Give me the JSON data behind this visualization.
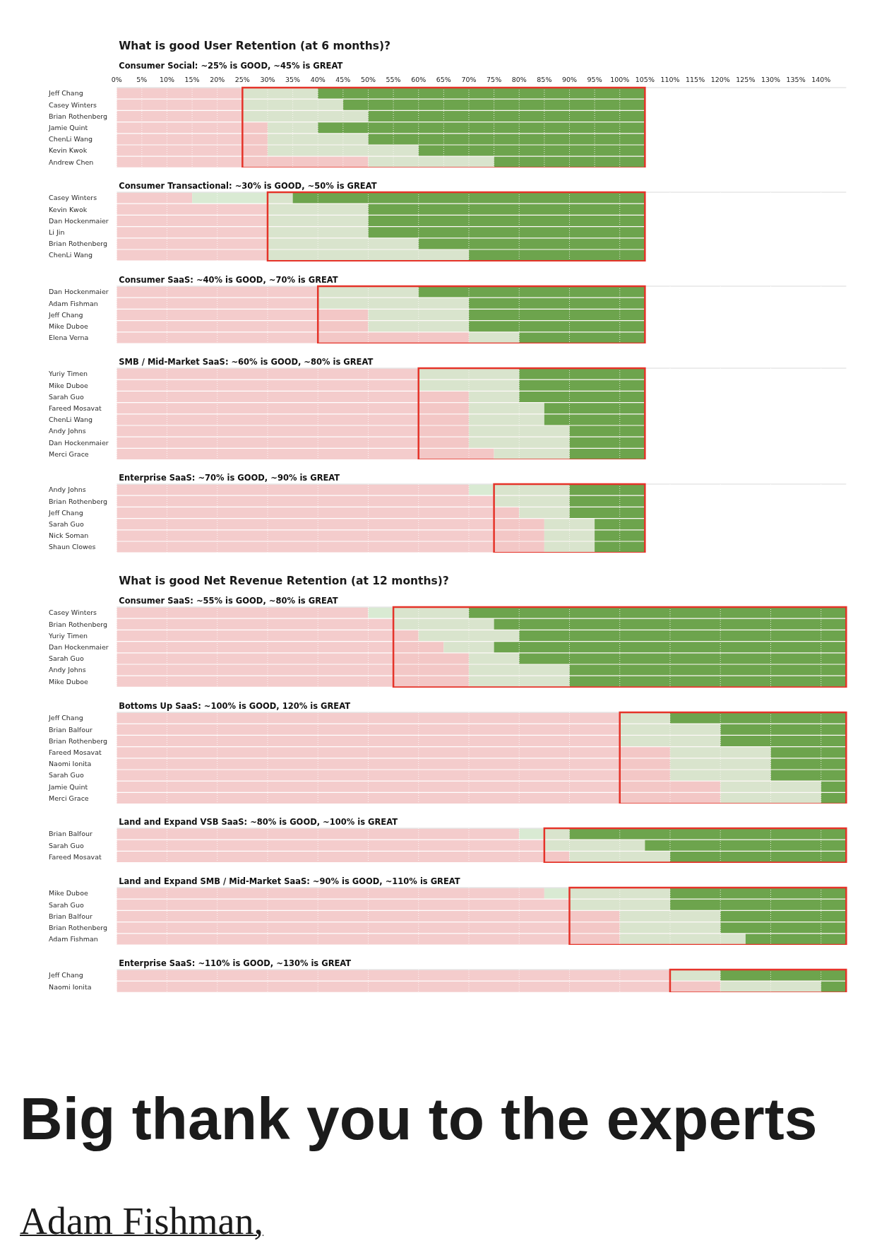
{
  "chart_data": [
    {
      "type": "bar",
      "title": "What is good User Retention (at 6 months)?",
      "subtitle": "Consumer Social: ~25% is GOOD, ~45% is GREAT",
      "orientation": "horizontal",
      "stacked": true,
      "categories": [
        "Jeff Chang",
        "Casey Winters",
        "Brian Rothenberg",
        "Jamie Quint",
        "ChenLi Wang",
        "Kevin Kwok",
        "Andrew Chen"
      ],
      "series": [
        {
          "color": "#f4cccc",
          "values": [
            25,
            25,
            25,
            30,
            30,
            30,
            50
          ]
        },
        {
          "color": "#d9ead3",
          "values": [
            15,
            20,
            25,
            10,
            20,
            30,
            25
          ]
        },
        {
          "color": "#6aa84f",
          "values": [
            65,
            60,
            55,
            65,
            55,
            45,
            30
          ]
        }
      ],
      "xlim": [
        0,
        145
      ],
      "xticks": [
        {
          "value": 0,
          "label": "0%"
        },
        {
          "value": 5,
          "label": "5%"
        },
        {
          "value": 10,
          "label": "10%"
        },
        {
          "value": 15,
          "label": "15%"
        },
        {
          "value": 20,
          "label": "20%"
        },
        {
          "value": 25,
          "label": "25%"
        },
        {
          "value": 30,
          "label": "30%"
        },
        {
          "value": 35,
          "label": "35%"
        },
        {
          "value": 40,
          "label": "40%"
        },
        {
          "value": 45,
          "label": "45%"
        },
        {
          "value": 50,
          "label": "50%"
        },
        {
          "value": 55,
          "label": "55%"
        },
        {
          "value": 60,
          "label": "60%"
        },
        {
          "value": 65,
          "label": "65%"
        },
        {
          "value": 70,
          "label": "70%"
        },
        {
          "value": 75,
          "label": "75%"
        },
        {
          "value": 80,
          "label": "80%"
        },
        {
          "value": 85,
          "label": "85%"
        },
        {
          "value": 90,
          "label": "90%"
        },
        {
          "value": 95,
          "label": "95%"
        },
        {
          "value": 100,
          "label": "100%"
        },
        {
          "value": 105,
          "label": "105%"
        },
        {
          "value": 110,
          "label": "110%"
        },
        {
          "value": 115,
          "label": "115%"
        },
        {
          "value": 120,
          "label": "120%"
        },
        {
          "value": 125,
          "label": "125%"
        },
        {
          "value": 130,
          "label": "130%"
        },
        {
          "value": 135,
          "label": "135%"
        },
        {
          "value": 140,
          "label": "140%"
        }
      ],
      "grid": "x",
      "bands": [
        {
          "axis": "x",
          "from": 25,
          "to": 105,
          "color": "#e53329"
        }
      ]
    },
    {
      "type": "bar",
      "subtitle": "Consumer Transactional: ~30% is GOOD, ~50% is GREAT",
      "orientation": "horizontal",
      "stacked": true,
      "categories": [
        "Casey Winters",
        "Kevin Kwok",
        "Dan Hockenmaier",
        "Li Jin",
        "Brian Rothenberg",
        "ChenLi Wang"
      ],
      "series": [
        {
          "color": "#f4cccc",
          "values": [
            15,
            30,
            30,
            30,
            30,
            30
          ]
        },
        {
          "color": "#d9ead3",
          "values": [
            20,
            20,
            20,
            20,
            30,
            40
          ]
        },
        {
          "color": "#6aa84f",
          "values": [
            70,
            55,
            55,
            55,
            45,
            35
          ]
        }
      ],
      "xlim": [
        0,
        145
      ],
      "xticks": [
        0,
        10,
        20,
        30,
        40,
        50,
        60,
        70,
        80,
        90,
        100,
        110,
        120,
        130,
        140
      ],
      "tick_labels": "y",
      "grid": "x",
      "bands": [
        {
          "axis": "x",
          "from": 30,
          "to": 105,
          "color": "#e53329"
        }
      ]
    },
    {
      "type": "bar",
      "subtitle": "Consumer SaaS: ~40% is GOOD, ~70% is GREAT",
      "orientation": "horizontal",
      "stacked": true,
      "categories": [
        "Dan Hockenmaier",
        "Adam Fishman",
        "Jeff Chang",
        "Mike Duboe",
        "Elena Verna"
      ],
      "series": [
        {
          "color": "#f4cccc",
          "values": [
            40,
            40,
            50,
            50,
            70
          ]
        },
        {
          "color": "#d9ead3",
          "values": [
            20,
            30,
            20,
            20,
            10
          ]
        },
        {
          "color": "#6aa84f",
          "values": [
            45,
            35,
            35,
            35,
            25
          ]
        }
      ],
      "xlim": [
        0,
        145
      ],
      "xticks": [
        0,
        10,
        20,
        30,
        40,
        50,
        60,
        70,
        80,
        90,
        100,
        110,
        120,
        130,
        140
      ],
      "tick_labels": "y",
      "grid": "x",
      "bands": [
        {
          "axis": "x",
          "from": 40,
          "to": 105,
          "color": "#e53329"
        }
      ]
    },
    {
      "type": "bar",
      "subtitle": "SMB / Mid-Market SaaS: ~60% is GOOD, ~80% is GREAT",
      "orientation": "horizontal",
      "stacked": true,
      "categories": [
        "Yuriy Timen",
        "Mike Duboe",
        "Sarah Guo",
        "Fareed Mosavat",
        "ChenLi Wang",
        "Andy Johns",
        "Dan Hockenmaier",
        "Merci Grace"
      ],
      "series": [
        {
          "color": "#f4cccc",
          "values": [
            60,
            60,
            70,
            70,
            70,
            70,
            70,
            75
          ]
        },
        {
          "color": "#d9ead3",
          "values": [
            20,
            20,
            10,
            15,
            15,
            20,
            20,
            15
          ]
        },
        {
          "color": "#6aa84f",
          "values": [
            25,
            25,
            25,
            20,
            20,
            15,
            15,
            15
          ]
        }
      ],
      "xlim": [
        0,
        145
      ],
      "xticks": [
        0,
        10,
        20,
        30,
        40,
        50,
        60,
        70,
        80,
        90,
        100,
        110,
        120,
        130,
        140
      ],
      "tick_labels": "y",
      "grid": "x",
      "bands": [
        {
          "axis": "x",
          "from": 60,
          "to": 105,
          "color": "#e53329"
        }
      ]
    },
    {
      "type": "bar",
      "subtitle": "Enterprise SaaS: ~70% is GOOD, ~90% is GREAT",
      "orientation": "horizontal",
      "stacked": true,
      "categories": [
        "Andy Johns",
        "Brian Rothenberg",
        "Jeff Chang",
        "Sarah Guo",
        "Nick Soman",
        "Shaun Clowes"
      ],
      "series": [
        {
          "color": "#f4cccc",
          "values": [
            70,
            75,
            80,
            85,
            85,
            85
          ]
        },
        {
          "color": "#d9ead3",
          "values": [
            20,
            15,
            10,
            10,
            10,
            10
          ]
        },
        {
          "color": "#6aa84f",
          "values": [
            15,
            15,
            15,
            10,
            10,
            10
          ]
        }
      ],
      "xlim": [
        0,
        145
      ],
      "xticks": [
        0,
        10,
        20,
        30,
        40,
        50,
        60,
        70,
        80,
        90,
        100,
        110,
        120,
        130,
        140
      ],
      "tick_labels": "y",
      "grid": "x",
      "bands": [
        {
          "axis": "x",
          "from": 75,
          "to": 105,
          "color": "#e53329"
        }
      ]
    },
    {
      "type": "bar",
      "title": "What is good Net Revenue Retention (at 12 months)?",
      "subtitle": "Consumer SaaS: ~55% is GOOD, ~80% is GREAT",
      "orientation": "horizontal",
      "stacked": true,
      "categories": [
        "Casey Winters",
        "Brian Rothenberg",
        "Yuriy Timen",
        "Dan Hockenmaier",
        "Sarah Guo",
        "Andy Johns",
        "Mike Duboe"
      ],
      "series": [
        {
          "color": "#f4cccc",
          "values": [
            50,
            55,
            60,
            65,
            70,
            70,
            70
          ]
        },
        {
          "color": "#d9ead3",
          "values": [
            20,
            20,
            20,
            10,
            10,
            20,
            20
          ]
        },
        {
          "color": "#6aa84f",
          "values": [
            75,
            70,
            65,
            70,
            65,
            55,
            55
          ]
        }
      ],
      "xlim": [
        0,
        145
      ],
      "xticks": [
        0,
        10,
        20,
        30,
        40,
        50,
        60,
        70,
        80,
        90,
        100,
        110,
        120,
        130,
        140
      ],
      "tick_labels": "y",
      "grid": "x",
      "bands": [
        {
          "axis": "x",
          "from": 55,
          "to": 145,
          "color": "#e53329"
        }
      ]
    },
    {
      "type": "bar",
      "subtitle": "Bottoms Up SaaS: ~100% is GOOD, 120% is GREAT",
      "orientation": "horizontal",
      "stacked": true,
      "categories": [
        "Jeff Chang",
        "Brian Balfour",
        "Brian Rothenberg",
        "Fareed Mosavat",
        "Naomi Ionita",
        "Sarah Guo",
        "Jamie Quint",
        "Merci Grace"
      ],
      "series": [
        {
          "color": "#f4cccc",
          "values": [
            100,
            100,
            100,
            110,
            110,
            110,
            120,
            120
          ]
        },
        {
          "color": "#d9ead3",
          "values": [
            10,
            20,
            20,
            20,
            20,
            20,
            20,
            20
          ]
        },
        {
          "color": "#6aa84f",
          "values": [
            35,
            25,
            25,
            15,
            15,
            15,
            5,
            5
          ]
        }
      ],
      "xlim": [
        0,
        145
      ],
      "xticks": [
        0,
        10,
        20,
        30,
        40,
        50,
        60,
        70,
        80,
        90,
        100,
        110,
        120,
        130,
        140
      ],
      "tick_labels": "y",
      "grid": "x",
      "bands": [
        {
          "axis": "x",
          "from": 100,
          "to": 145,
          "color": "#e53329"
        }
      ]
    },
    {
      "type": "bar",
      "subtitle": "Land and Expand VSB SaaS: ~80% is GOOD, ~100% is GREAT",
      "orientation": "horizontal",
      "stacked": true,
      "categories": [
        "Brian Balfour",
        "Sarah Guo",
        "Fareed Mosavat"
      ],
      "series": [
        {
          "color": "#f4cccc",
          "values": [
            80,
            85,
            90
          ]
        },
        {
          "color": "#d9ead3",
          "values": [
            10,
            20,
            20
          ]
        },
        {
          "color": "#6aa84f",
          "values": [
            55,
            40,
            35
          ]
        }
      ],
      "xlim": [
        0,
        145
      ],
      "xticks": [
        0,
        10,
        20,
        30,
        40,
        50,
        60,
        70,
        80,
        90,
        100,
        110,
        120,
        130,
        140
      ],
      "tick_labels": "y",
      "grid": "x",
      "bands": [
        {
          "axis": "x",
          "from": 85,
          "to": 145,
          "color": "#e53329"
        }
      ]
    },
    {
      "type": "bar",
      "subtitle": "Land and Expand SMB / Mid-Market SaaS: ~90% is GOOD, ~110% is GREAT",
      "orientation": "horizontal",
      "stacked": true,
      "categories": [
        "Mike Duboe",
        "Sarah Guo",
        "Brian Balfour",
        "Brian Rothenberg",
        "Adam Fishman"
      ],
      "series": [
        {
          "color": "#f4cccc",
          "values": [
            85,
            90,
            100,
            100,
            100
          ]
        },
        {
          "color": "#d9ead3",
          "values": [
            25,
            20,
            20,
            20,
            25
          ]
        },
        {
          "color": "#6aa84f",
          "values": [
            35,
            35,
            25,
            25,
            20
          ]
        }
      ],
      "xlim": [
        0,
        145
      ],
      "xticks": [
        0,
        10,
        20,
        30,
        40,
        50,
        60,
        70,
        80,
        90,
        100,
        110,
        120,
        130,
        140
      ],
      "tick_labels": "y",
      "grid": "x",
      "bands": [
        {
          "axis": "x",
          "from": 90,
          "to": 145,
          "color": "#e53329"
        }
      ]
    },
    {
      "type": "bar",
      "subtitle": "Enterprise SaaS: ~110% is GOOD, ~130% is GREAT",
      "orientation": "horizontal",
      "stacked": true,
      "categories": [
        "Jeff Chang",
        "Naomi Ionita"
      ],
      "series": [
        {
          "color": "#f4cccc",
          "values": [
            110,
            120
          ]
        },
        {
          "color": "#d9ead3",
          "values": [
            10,
            20
          ]
        },
        {
          "color": "#6aa84f",
          "values": [
            25,
            5
          ]
        }
      ],
      "xlim": [
        0,
        145
      ],
      "xticks": [
        0,
        10,
        20,
        30,
        40,
        50,
        60,
        70,
        80,
        90,
        100,
        110,
        120,
        130,
        140
      ],
      "tick_labels": "y",
      "grid": "x",
      "bands": [
        {
          "axis": "x",
          "from": 110,
          "to": 145,
          "color": "#e53329"
        }
      ],
      "annotations": [
        "Big thank you to the experts",
        "Adam Fishman,"
      ]
    }
  ]
}
